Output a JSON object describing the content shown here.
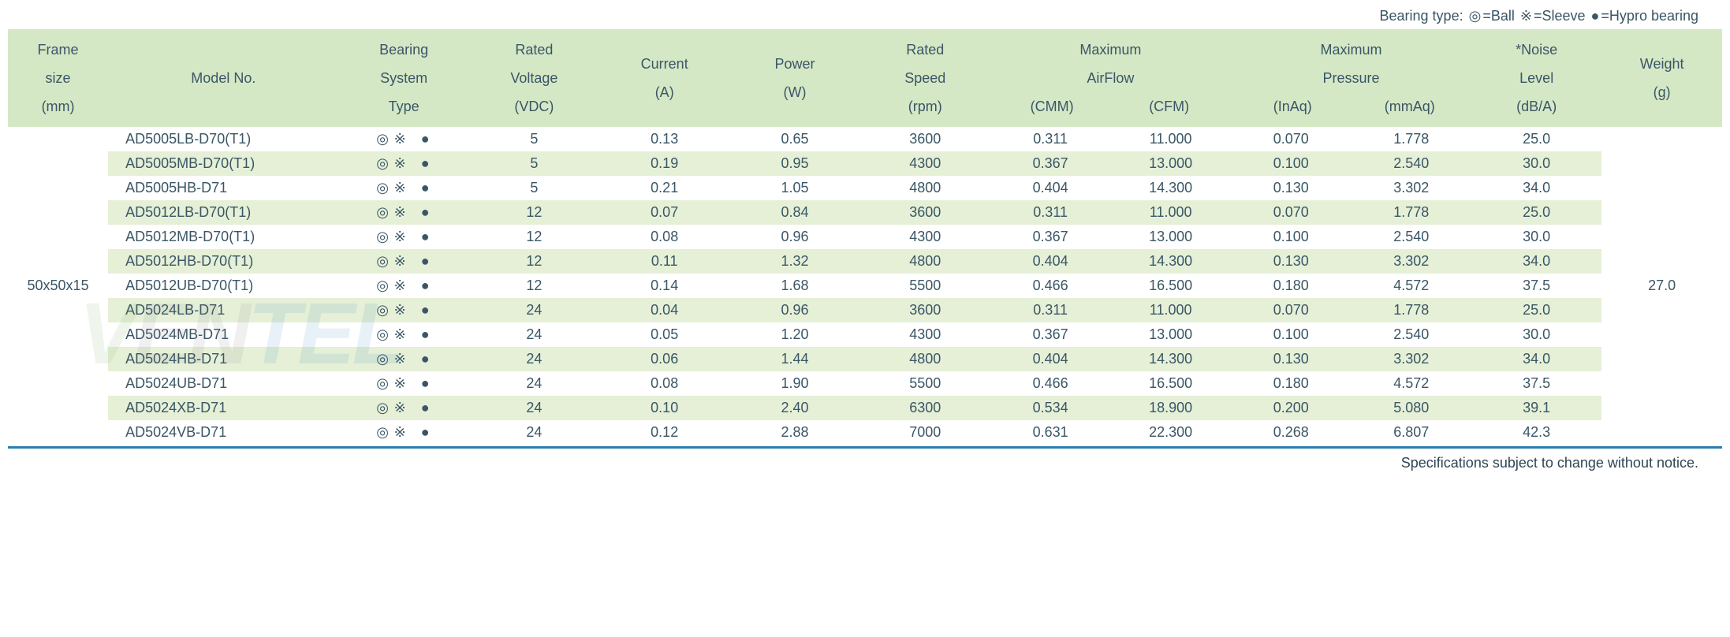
{
  "legend": {
    "label": "Bearing type:",
    "items": [
      {
        "symbol": "◎",
        "text": "=Ball"
      },
      {
        "symbol": "※",
        "text": "=Sleeve"
      },
      {
        "symbol": "●",
        "text": "=Hypro bearing"
      }
    ]
  },
  "table": {
    "background_even": "#e5f0d7",
    "background_odd": "#ffffff",
    "header_background": "#d5e8c6",
    "text_color": "#3a5666",
    "bottom_border_color": "#2a7fb0",
    "columns": [
      {
        "key": "frame",
        "lines": [
          "Frame",
          "size",
          "(mm)"
        ],
        "colspan": 1
      },
      {
        "key": "model",
        "lines": [
          "Model No."
        ],
        "colspan": 1
      },
      {
        "key": "bearing",
        "lines": [
          "Bearing",
          "System",
          "Type"
        ],
        "colspan": 1
      },
      {
        "key": "voltage",
        "lines": [
          "Rated",
          "Voltage",
          "(VDC)"
        ],
        "colspan": 1
      },
      {
        "key": "current",
        "lines": [
          "Current",
          "(A)"
        ],
        "colspan": 1
      },
      {
        "key": "power",
        "lines": [
          "Power",
          "(W)"
        ],
        "colspan": 1
      },
      {
        "key": "speed",
        "lines": [
          "Rated",
          "Speed",
          "(rpm)"
        ],
        "colspan": 1
      },
      {
        "key": "airflow",
        "lines": [
          "Maximum",
          "AirFlow"
        ],
        "colspan": 2,
        "sub": [
          "(CMM)",
          "(CFM)"
        ]
      },
      {
        "key": "pressure",
        "lines": [
          "Maximum",
          "Pressure"
        ],
        "colspan": 2,
        "sub": [
          "(InAq)",
          "(mmAq)"
        ]
      },
      {
        "key": "noise",
        "lines": [
          "*Noise",
          "Level",
          "(dB/A)"
        ],
        "colspan": 1
      },
      {
        "key": "weight",
        "lines": [
          "Weight",
          "(g)"
        ],
        "colspan": 1
      }
    ],
    "frame_size": "50x50x15",
    "weight": "27.0",
    "bearing_symbols": [
      "◎",
      "※",
      "●"
    ],
    "rows": [
      {
        "model": "AD5005LB-D70(T1)",
        "voltage": "5",
        "current": "0.13",
        "power": "0.65",
        "speed": "3600",
        "cmm": "0.311",
        "cfm": "11.000",
        "inaq": "0.070",
        "mmaq": "1.778",
        "noise": "25.0"
      },
      {
        "model": "AD5005MB-D70(T1)",
        "voltage": "5",
        "current": "0.19",
        "power": "0.95",
        "speed": "4300",
        "cmm": "0.367",
        "cfm": "13.000",
        "inaq": "0.100",
        "mmaq": "2.540",
        "noise": "30.0"
      },
      {
        "model": "AD5005HB-D71",
        "voltage": "5",
        "current": "0.21",
        "power": "1.05",
        "speed": "4800",
        "cmm": "0.404",
        "cfm": "14.300",
        "inaq": "0.130",
        "mmaq": "3.302",
        "noise": "34.0"
      },
      {
        "model": "AD5012LB-D70(T1)",
        "voltage": "12",
        "current": "0.07",
        "power": "0.84",
        "speed": "3600",
        "cmm": "0.311",
        "cfm": "11.000",
        "inaq": "0.070",
        "mmaq": "1.778",
        "noise": "25.0"
      },
      {
        "model": "AD5012MB-D70(T1)",
        "voltage": "12",
        "current": "0.08",
        "power": "0.96",
        "speed": "4300",
        "cmm": "0.367",
        "cfm": "13.000",
        "inaq": "0.100",
        "mmaq": "2.540",
        "noise": "30.0"
      },
      {
        "model": "AD5012HB-D70(T1)",
        "voltage": "12",
        "current": "0.11",
        "power": "1.32",
        "speed": "4800",
        "cmm": "0.404",
        "cfm": "14.300",
        "inaq": "0.130",
        "mmaq": "3.302",
        "noise": "34.0"
      },
      {
        "model": "AD5012UB-D70(T1)",
        "voltage": "12",
        "current": "0.14",
        "power": "1.68",
        "speed": "5500",
        "cmm": "0.466",
        "cfm": "16.500",
        "inaq": "0.180",
        "mmaq": "4.572",
        "noise": "37.5"
      },
      {
        "model": "AD5024LB-D71",
        "voltage": "24",
        "current": "0.04",
        "power": "0.96",
        "speed": "3600",
        "cmm": "0.311",
        "cfm": "11.000",
        "inaq": "0.070",
        "mmaq": "1.778",
        "noise": "25.0"
      },
      {
        "model": "AD5024MB-D71",
        "voltage": "24",
        "current": "0.05",
        "power": "1.20",
        "speed": "4300",
        "cmm": "0.367",
        "cfm": "13.000",
        "inaq": "0.100",
        "mmaq": "2.540",
        "noise": "30.0"
      },
      {
        "model": "AD5024HB-D71",
        "voltage": "24",
        "current": "0.06",
        "power": "1.44",
        "speed": "4800",
        "cmm": "0.404",
        "cfm": "14.300",
        "inaq": "0.130",
        "mmaq": "3.302",
        "noise": "34.0"
      },
      {
        "model": "AD5024UB-D71",
        "voltage": "24",
        "current": "0.08",
        "power": "1.90",
        "speed": "5500",
        "cmm": "0.466",
        "cfm": "16.500",
        "inaq": "0.180",
        "mmaq": "4.572",
        "noise": "37.5"
      },
      {
        "model": "AD5024XB-D71",
        "voltage": "24",
        "current": "0.10",
        "power": "2.40",
        "speed": "6300",
        "cmm": "0.534",
        "cfm": "18.900",
        "inaq": "0.200",
        "mmaq": "5.080",
        "noise": "39.1"
      },
      {
        "model": "AD5024VB-D71",
        "voltage": "24",
        "current": "0.12",
        "power": "2.88",
        "speed": "7000",
        "cmm": "0.631",
        "cfm": "22.300",
        "inaq": "0.268",
        "mmaq": "6.807",
        "noise": "42.3"
      }
    ]
  },
  "footer_note": "Specifications subject to change without notice.",
  "watermark_text": "VENTEL"
}
